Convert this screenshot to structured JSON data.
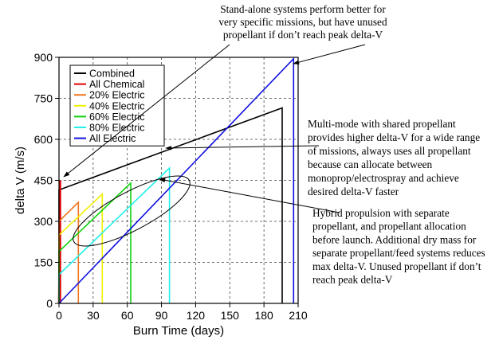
{
  "chart_data": {
    "type": "line",
    "title": "",
    "xlabel": "Burn Time (days)",
    "ylabel": "delta V (m/s)",
    "xlim": [
      0,
      210
    ],
    "ylim": [
      0,
      900
    ],
    "x_ticks": [
      0,
      30,
      60,
      90,
      120,
      150,
      180,
      210
    ],
    "y_ticks": [
      0,
      150,
      300,
      450,
      600,
      750,
      900
    ],
    "grid": true,
    "legend_position": "top-left",
    "series": [
      {
        "name": "Combined",
        "color": "#000000",
        "x": [
          0,
          0,
          196,
          196
        ],
        "y": [
          0,
          415,
          715,
          0
        ]
      },
      {
        "name": "All Chemical",
        "color": "#e00000",
        "x": [
          0,
          1,
          1
        ],
        "y": [
          0,
          450,
          0
        ]
      },
      {
        "name": "20% Electric",
        "color": "#f07820",
        "x": [
          0,
          0,
          17,
          17
        ],
        "y": [
          0,
          300,
          370,
          0
        ]
      },
      {
        "name": "40% Electric",
        "color": "#f0f000",
        "x": [
          0,
          0,
          38,
          38
        ],
        "y": [
          0,
          250,
          400,
          0
        ]
      },
      {
        "name": "60% Electric",
        "color": "#10d010",
        "x": [
          0,
          0,
          63,
          63
        ],
        "y": [
          0,
          190,
          440,
          0
        ]
      },
      {
        "name": "80% Electric",
        "color": "#20f0e8",
        "x": [
          0,
          0,
          97,
          97
        ],
        "y": [
          0,
          105,
          495,
          0
        ]
      },
      {
        "name": "All Electric",
        "color": "#1010e0",
        "x": [
          0,
          206,
          206
        ],
        "y": [
          0,
          895,
          0
        ]
      }
    ],
    "annotations": [
      {
        "id": "standalone",
        "lines": [
          "Stand-alone systems perform better for",
          "very specific missions, but have unused",
          "propellant if don’t reach peak delta-V"
        ]
      },
      {
        "id": "multimode",
        "lines": [
          "Multi-mode with shared propellant",
          "provides higher delta-V for a wide range",
          "of missions, always uses all propellant",
          "because can allocate between",
          "monoprop/electrospray and achieve",
          "desired delta-V faster"
        ]
      },
      {
        "id": "hybrid",
        "lines": [
          "Hybrid propulsion with separate",
          "propellant, and propellant allocation",
          "before launch. Additional dry mass for",
          "separate propellant/feed systems reduces",
          "max delta-V.  Unused propellant if don’t",
          "reach peak delta-V"
        ]
      }
    ]
  }
}
